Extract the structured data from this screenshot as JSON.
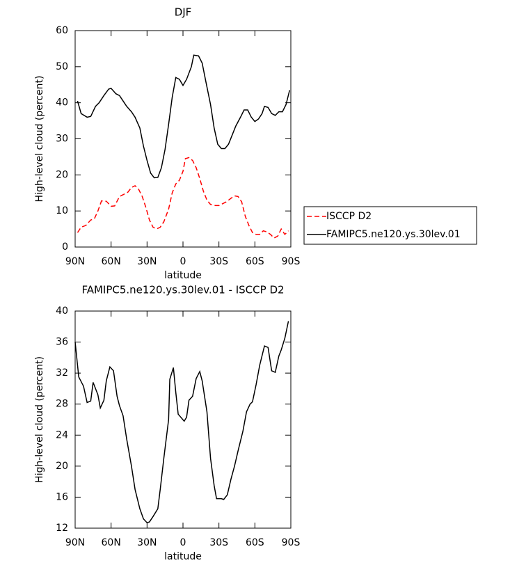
{
  "chart_data": [
    {
      "type": "line",
      "title": "DJF",
      "xlabel": "latitude",
      "ylabel": "High-level cloud (percent)",
      "xlim": [
        90,
        -90
      ],
      "xticks": [
        {
          "value": 90,
          "label": "90N"
        },
        {
          "value": 60,
          "label": "60N"
        },
        {
          "value": 30,
          "label": "30N"
        },
        0,
        {
          "value": -30,
          "label": "30S"
        },
        {
          "value": -60,
          "label": "60S"
        },
        {
          "value": -90,
          "label": "90S"
        }
      ],
      "ylim": [
        0,
        60
      ],
      "yticks": [
        0,
        10,
        20,
        30,
        40,
        50,
        60
      ],
      "legend": "right",
      "series": [
        {
          "name": "ISCCP D2",
          "color": "#ff0000",
          "linestyle": "dashed",
          "x": [
            88,
            85,
            81,
            77,
            74,
            71,
            68,
            64,
            60,
            57,
            53,
            50,
            46,
            43,
            40,
            37,
            34,
            31,
            28,
            25,
            22,
            19,
            16,
            12,
            9,
            6,
            3,
            0,
            -2,
            -5,
            -8,
            -11,
            -14,
            -17,
            -20,
            -23,
            -27,
            -30,
            -33,
            -36,
            -40,
            -43,
            -46,
            -49,
            -52,
            -55,
            -58,
            -61,
            -64,
            -67,
            -70,
            -73,
            -76,
            -79,
            -82,
            -85,
            -88
          ],
          "values": [
            4,
            5.5,
            6,
            7.5,
            7.8,
            10,
            12.8,
            12.7,
            11.3,
            11.4,
            14,
            14.5,
            15.2,
            16.5,
            17,
            16,
            14,
            11,
            7.5,
            5.5,
            5,
            5.5,
            7,
            10.5,
            15,
            17.5,
            18.5,
            21,
            24.5,
            24.8,
            24,
            22,
            19,
            15.5,
            13,
            11.8,
            11.5,
            11.5,
            12,
            12.5,
            13.5,
            14.2,
            14,
            12.5,
            8.5,
            6,
            4,
            3.5,
            3.5,
            4.5,
            4.2,
            3.5,
            2.5,
            3,
            5,
            3.5,
            4.5
          ]
        },
        {
          "name": "FAMIPC5.ne120.ys.30lev.01",
          "color": "#000000",
          "linestyle": "solid",
          "x": [
            88,
            85,
            80,
            77,
            73,
            70,
            66,
            62,
            60,
            56,
            53,
            50,
            47,
            43,
            40,
            36,
            33,
            30,
            27,
            24,
            21,
            18,
            15,
            12,
            9,
            6,
            3,
            0,
            -3,
            -7,
            -9,
            -13,
            -16,
            -19,
            -23,
            -26,
            -29,
            -32,
            -35,
            -38,
            -41,
            -44,
            -48,
            -51,
            -54,
            -57,
            -60,
            -63,
            -66,
            -68,
            -71,
            -74,
            -77,
            -80,
            -83,
            -86,
            -89
          ],
          "values": [
            40.5,
            37,
            36,
            36.2,
            39,
            40,
            42,
            43.8,
            44,
            42.5,
            42,
            40.5,
            39,
            37.5,
            36,
            33,
            28,
            24,
            20.5,
            19.2,
            19.3,
            22,
            27,
            34,
            41.5,
            47,
            46.5,
            44.8,
            46.5,
            50,
            53.2,
            53,
            51,
            46,
            39.5,
            33,
            28.5,
            27.3,
            27.3,
            28.5,
            31,
            33.5,
            36,
            38,
            38,
            36,
            34.8,
            35.5,
            37,
            39,
            38.7,
            37,
            36.5,
            37.5,
            37.5,
            39.5,
            43.5
          ]
        }
      ]
    },
    {
      "type": "line",
      "title": "FAMIPC5.ne120.ys.30lev.01 - ISCCP D2",
      "xlabel": "latitude",
      "ylabel": "High-level cloud (percent)",
      "xlim": [
        90,
        -90
      ],
      "xticks": [
        {
          "value": 90,
          "label": "90N"
        },
        {
          "value": 60,
          "label": "60N"
        },
        {
          "value": 30,
          "label": "30N"
        },
        0,
        {
          "value": -30,
          "label": "30S"
        },
        {
          "value": -60,
          "label": "60S"
        },
        {
          "value": -90,
          "label": "90S"
        }
      ],
      "ylim": [
        12,
        40
      ],
      "yticks": [
        12,
        16,
        20,
        24,
        28,
        32,
        36,
        40
      ],
      "series": [
        {
          "color": "#000000",
          "linestyle": "solid",
          "x": [
            90,
            87,
            83,
            80,
            77,
            75,
            71,
            69,
            66,
            64,
            61,
            58,
            55,
            53,
            50,
            47,
            43,
            40,
            36,
            33,
            30,
            28,
            25,
            21,
            19,
            16,
            12,
            11,
            8,
            6,
            4,
            -1,
            -3,
            -5,
            -8,
            -11,
            -14,
            -16,
            -20,
            -23,
            -26,
            -28,
            -32,
            -34,
            -37,
            -40,
            -43,
            -46,
            -50,
            -53,
            -56,
            -58,
            -61,
            -64,
            -68,
            -71,
            -74,
            -77,
            -80,
            -82,
            -85,
            -88
          ],
          "values": [
            36,
            31.5,
            30.3,
            28.2,
            28.4,
            30.8,
            29.2,
            27.5,
            28.5,
            31,
            32.8,
            32.3,
            29,
            27.8,
            26.5,
            23.5,
            20,
            17,
            14.5,
            13.2,
            12.7,
            12.8,
            13.5,
            14.5,
            17,
            21,
            26,
            31.2,
            32.7,
            29.5,
            26.7,
            25.8,
            26.3,
            28.5,
            29,
            31.3,
            32.2,
            31,
            27,
            21,
            17.5,
            15.8,
            15.8,
            15.7,
            16.3,
            18.3,
            20,
            22,
            24.5,
            27,
            28,
            28.3,
            30.5,
            33,
            35.5,
            35.3,
            32.3,
            32.1,
            34.2,
            35,
            36.5,
            38.7
          ]
        }
      ]
    }
  ]
}
